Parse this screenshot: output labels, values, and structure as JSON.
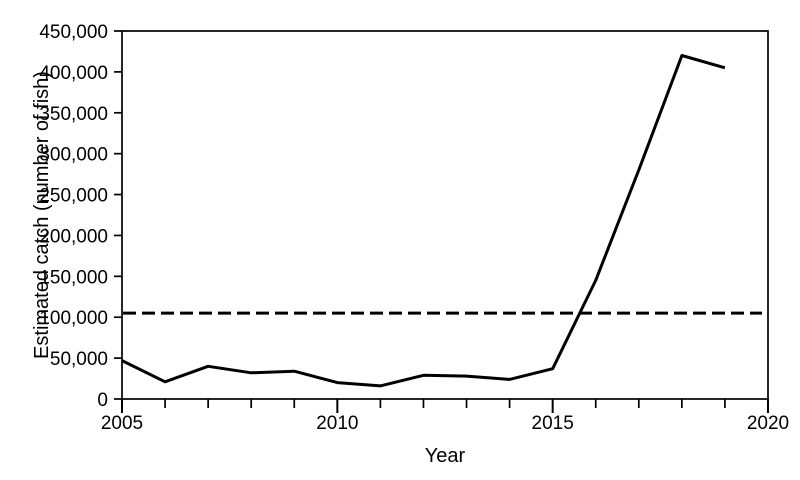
{
  "figure": {
    "background_color": "#ffffff",
    "line_color": "#000000",
    "text_color": "#000000"
  },
  "chart_data": {
    "type": "line",
    "title": "",
    "xlabel": "Year",
    "ylabel": "Estimated catch (number of fish)",
    "xlim": [
      2005,
      2020
    ],
    "ylim": [
      0,
      450000
    ],
    "grid": false,
    "legend": "none",
    "frame": "full-box",
    "x_minor_tick_interval": 1,
    "x_major_ticks": [
      2005,
      2010,
      2015,
      2020
    ],
    "x_major_tick_labels": [
      "2005",
      "2010",
      "2015",
      "2020"
    ],
    "y_ticks": [
      0,
      50000,
      100000,
      150000,
      200000,
      250000,
      300000,
      350000,
      400000,
      450000
    ],
    "y_tick_labels": [
      "0",
      "50,000",
      "100,000",
      "150,000",
      "200,000",
      "250,000",
      "300,000",
      "350,000",
      "400,000",
      "450,000"
    ],
    "series": [
      {
        "name": "estimated-catch",
        "style": "solid",
        "color": "#000000",
        "x": [
          2005,
          2006,
          2007,
          2008,
          2009,
          2010,
          2011,
          2012,
          2013,
          2014,
          2015,
          2016,
          2017,
          2018,
          2019
        ],
        "values": [
          47000,
          21000,
          40000,
          32000,
          34000,
          20000,
          16000,
          29000,
          28000,
          24000,
          37000,
          145000,
          280000,
          420000,
          405000
        ]
      }
    ],
    "reference_line": {
      "name": "horizontal-reference",
      "style": "dashed",
      "color": "#000000",
      "value": 105000
    }
  }
}
